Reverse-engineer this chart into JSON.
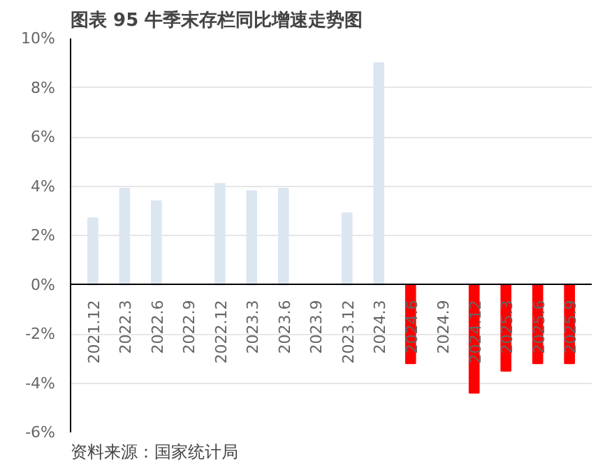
{
  "chart_data": {
    "type": "bar",
    "title": "图表 95  牛季末存栏同比增速走势图",
    "categories": [
      "2021.12",
      "2022.3",
      "2022.6",
      "2022.9",
      "2022.12",
      "2023.3",
      "2023.6",
      "2023.9",
      "2023.12",
      "2024.3",
      "2024.6",
      "2024.9",
      "2024.12",
      "2025.3",
      "2025.6",
      "2025.9"
    ],
    "values": [
      2.7,
      3.9,
      3.4,
      null,
      4.1,
      3.8,
      3.9,
      null,
      2.9,
      9.0,
      -3.2,
      null,
      -4.4,
      -3.5,
      -3.2,
      -3.2
    ],
    "colors": [
      "#dce6f1",
      "#dce6f1",
      "#dce6f1",
      "#dce6f1",
      "#dce6f1",
      "#dce6f1",
      "#dce6f1",
      "#dce6f1",
      "#dce6f1",
      "#dce6f1",
      "#ff0000",
      "#ff0000",
      "#ff0000",
      "#ff0000",
      "#ff0000",
      "#ff0000"
    ],
    "ylim": [
      -6,
      10
    ],
    "yticks": [
      {
        "value": -6,
        "label": "-6%"
      },
      {
        "value": -4,
        "label": "-4%"
      },
      {
        "value": -2,
        "label": "-2%"
      },
      {
        "value": 0,
        "label": "0%"
      },
      {
        "value": 2,
        "label": "2%"
      },
      {
        "value": 4,
        "label": "4%"
      },
      {
        "value": 6,
        "label": "6%"
      },
      {
        "value": 8,
        "label": "8%"
      },
      {
        "value": 10,
        "label": "10%"
      }
    ],
    "grid": "y",
    "annotations": [
      "资料来源：国家统计局"
    ]
  }
}
